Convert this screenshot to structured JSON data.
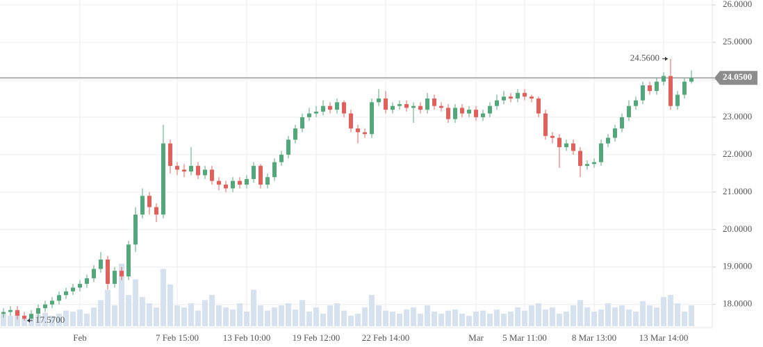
{
  "chart_data": {
    "type": "candlestick",
    "categories": [
      null,
      null,
      null,
      null,
      null,
      null,
      null,
      null,
      null,
      null,
      null,
      "Feb",
      null,
      null,
      null,
      null,
      null,
      null,
      null,
      null,
      null,
      null,
      null,
      null,
      null,
      "7 Feb 15:00",
      null,
      null,
      null,
      null,
      null,
      null,
      null,
      null,
      null,
      "13 Feb 10:00",
      null,
      null,
      null,
      null,
      null,
      null,
      null,
      null,
      null,
      "19 Feb 12:00",
      null,
      null,
      null,
      null,
      null,
      null,
      null,
      null,
      null,
      "22 Feb 14:00",
      null,
      null,
      null,
      null,
      null,
      null,
      null,
      null,
      null,
      null,
      null,
      null,
      "Mar",
      null,
      null,
      null,
      null,
      null,
      null,
      "5 Mar 11:00",
      null,
      null,
      null,
      null,
      null,
      null,
      null,
      null,
      null,
      "8 Mar 13:00",
      null,
      null,
      null,
      null,
      null,
      null,
      null,
      null,
      null,
      "13 Mar 14:00",
      null,
      null,
      null,
      null
    ],
    "open": [
      17.75,
      17.8,
      17.85,
      17.7,
      17.62,
      17.75,
      17.9,
      18.0,
      18.1,
      18.25,
      18.35,
      18.45,
      18.55,
      18.7,
      18.95,
      19.2,
      18.55,
      18.9,
      18.75,
      19.6,
      20.4,
      20.9,
      20.6,
      20.4,
      22.3,
      21.7,
      21.6,
      21.55,
      21.7,
      21.45,
      21.6,
      21.3,
      21.2,
      21.1,
      21.3,
      21.2,
      21.35,
      21.7,
      21.2,
      21.4,
      21.8,
      22.0,
      22.4,
      22.7,
      23.0,
      23.1,
      23.15,
      23.3,
      23.2,
      23.4,
      23.1,
      22.7,
      22.6,
      22.55,
      23.4,
      23.5,
      23.2,
      23.3,
      23.35,
      23.25,
      23.3,
      23.2,
      23.5,
      23.3,
      23.25,
      22.95,
      23.25,
      23.1,
      23.2,
      23.0,
      23.1,
      23.3,
      23.45,
      23.55,
      23.5,
      23.65,
      23.55,
      23.5,
      23.1,
      22.5,
      22.45,
      22.2,
      22.3,
      22.1,
      21.7,
      21.75,
      21.8,
      22.3,
      22.45,
      22.7,
      23.0,
      23.3,
      23.45,
      23.85,
      23.7,
      23.95,
      24.1,
      23.3,
      23.6,
      23.95
    ],
    "high": [
      17.9,
      17.95,
      17.95,
      17.8,
      17.85,
      18.0,
      18.1,
      18.2,
      18.35,
      18.45,
      18.55,
      18.65,
      18.8,
      19.05,
      19.4,
      19.3,
      19.0,
      19.0,
      19.7,
      20.6,
      21.1,
      21.0,
      20.7,
      22.8,
      22.4,
      21.8,
      21.75,
      22.2,
      21.8,
      21.7,
      21.7,
      21.4,
      21.3,
      21.4,
      21.4,
      21.45,
      21.8,
      21.75,
      21.5,
      21.9,
      22.1,
      22.5,
      22.8,
      23.1,
      23.25,
      23.3,
      23.45,
      23.4,
      23.5,
      23.45,
      23.2,
      22.8,
      22.7,
      23.5,
      23.75,
      23.7,
      23.4,
      23.45,
      23.45,
      23.4,
      23.4,
      23.65,
      23.6,
      23.4,
      23.35,
      23.35,
      23.35,
      23.3,
      23.3,
      23.2,
      23.4,
      23.6,
      23.7,
      23.65,
      23.75,
      23.75,
      23.6,
      23.55,
      23.2,
      22.6,
      22.55,
      22.4,
      22.4,
      22.2,
      21.85,
      21.9,
      22.4,
      22.55,
      22.8,
      23.1,
      23.45,
      23.55,
      23.95,
      23.95,
      24.05,
      24.2,
      24.56,
      23.7,
      24.05,
      24.25
    ],
    "low": [
      17.65,
      17.7,
      17.6,
      17.57,
      17.6,
      17.65,
      17.8,
      17.9,
      18.0,
      18.15,
      18.25,
      18.35,
      18.45,
      18.6,
      18.85,
      18.4,
      18.45,
      18.65,
      18.65,
      19.4,
      20.3,
      20.4,
      20.2,
      20.3,
      21.5,
      21.45,
      21.4,
      21.45,
      21.35,
      21.35,
      21.2,
      21.05,
      21.0,
      21.0,
      21.1,
      21.1,
      21.25,
      21.1,
      21.1,
      21.3,
      21.7,
      21.9,
      22.3,
      22.6,
      22.9,
      23.0,
      23.05,
      23.1,
      23.1,
      23.0,
      22.6,
      22.3,
      22.45,
      22.45,
      23.3,
      23.1,
      23.1,
      23.2,
      23.15,
      22.85,
      23.1,
      23.1,
      23.2,
      23.15,
      22.85,
      22.85,
      23.0,
      23.0,
      22.9,
      22.9,
      23.0,
      23.2,
      23.35,
      23.4,
      23.4,
      23.45,
      23.4,
      23.0,
      22.4,
      22.3,
      21.65,
      22.1,
      22.0,
      21.4,
      21.6,
      21.65,
      21.7,
      22.2,
      22.35,
      22.6,
      22.9,
      23.2,
      23.35,
      23.6,
      23.6,
      23.85,
      23.2,
      23.2,
      23.5,
      23.9
    ],
    "close": [
      17.8,
      17.85,
      17.7,
      17.62,
      17.75,
      17.9,
      18.0,
      18.1,
      18.25,
      18.35,
      18.45,
      18.55,
      18.7,
      18.95,
      19.2,
      18.55,
      18.9,
      18.75,
      19.6,
      20.4,
      20.9,
      20.6,
      20.4,
      22.3,
      21.7,
      21.6,
      21.55,
      21.7,
      21.45,
      21.6,
      21.3,
      21.2,
      21.1,
      21.3,
      21.2,
      21.35,
      21.7,
      21.2,
      21.4,
      21.8,
      22.0,
      22.4,
      22.7,
      23.0,
      23.1,
      23.15,
      23.3,
      23.2,
      23.4,
      23.1,
      22.7,
      22.6,
      22.55,
      23.4,
      23.5,
      23.2,
      23.3,
      23.35,
      23.25,
      23.3,
      23.2,
      23.5,
      23.3,
      23.25,
      22.95,
      23.25,
      23.1,
      23.2,
      23.0,
      23.1,
      23.3,
      23.45,
      23.55,
      23.5,
      23.65,
      23.55,
      23.5,
      23.1,
      22.5,
      22.45,
      22.2,
      22.3,
      22.1,
      21.7,
      21.75,
      21.8,
      22.3,
      22.45,
      22.7,
      23.0,
      23.3,
      23.45,
      23.85,
      23.7,
      23.95,
      24.1,
      23.3,
      23.6,
      23.95,
      24.05
    ],
    "volume": [
      12,
      10,
      14,
      8,
      9,
      11,
      13,
      10,
      12,
      15,
      14,
      16,
      12,
      18,
      25,
      35,
      20,
      60,
      30,
      45,
      28,
      22,
      18,
      55,
      40,
      20,
      18,
      22,
      15,
      25,
      30,
      20,
      18,
      16,
      22,
      14,
      35,
      20,
      15,
      18,
      20,
      22,
      16,
      25,
      14,
      18,
      12,
      20,
      22,
      15,
      10,
      12,
      18,
      30,
      20,
      15,
      14,
      12,
      16,
      18,
      12,
      20,
      14,
      12,
      15,
      16,
      12,
      10,
      14,
      15,
      12,
      16,
      12,
      14,
      18,
      15,
      20,
      22,
      16,
      18,
      12,
      14,
      20,
      25,
      18,
      14,
      16,
      22,
      18,
      20,
      16,
      14,
      24,
      20,
      18,
      28,
      30,
      22,
      14,
      20
    ],
    "up_color": "#53a77a",
    "down_color": "#e0605c",
    "volume_color": "#d6e2f0",
    "ylim": [
      17.3,
      26.13
    ],
    "yticks": [
      {
        "value": 18,
        "label": "18.0000"
      },
      {
        "value": 19,
        "label": "19.0000"
      },
      {
        "value": 20,
        "label": "20.0000"
      },
      {
        "value": 21,
        "label": "21.0000"
      },
      {
        "value": 22,
        "label": "22.0000"
      },
      {
        "value": 23,
        "label": "23.0000"
      },
      {
        "value": 24,
        "label": "24.0000"
      },
      {
        "value": 25,
        "label": "25.0000"
      },
      {
        "value": 26,
        "label": "26.0000"
      }
    ],
    "grid": true,
    "max_marker": {
      "value": 24.56,
      "label": "24.5600"
    },
    "min_marker": {
      "value": 17.57,
      "label": "17.5700"
    },
    "last_price": {
      "value": 24.05,
      "label": "24.0500"
    }
  }
}
